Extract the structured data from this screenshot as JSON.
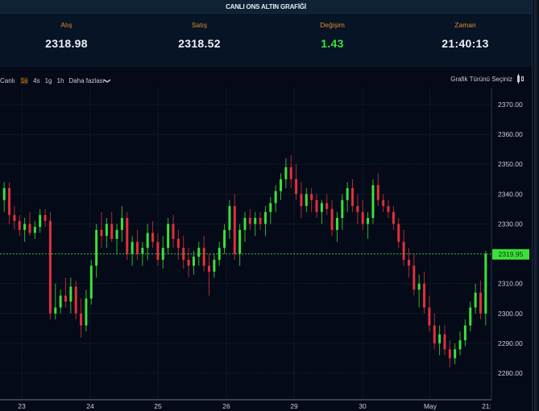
{
  "header": {
    "title": "CANLI ONS ALTIN GRAFİĞİ"
  },
  "stats": [
    {
      "label": "Alış",
      "value": "2318.98"
    },
    {
      "label": "Satış",
      "value": "2318.52"
    },
    {
      "label": "Değişim",
      "value": "1.43"
    },
    {
      "label": "Zaman",
      "value": "21:40:13"
    }
  ],
  "toolbar": {
    "live_label": "Canlı",
    "intervals": [
      "1s",
      "4s",
      "1g",
      "1h"
    ],
    "active_interval": "1s",
    "more_label": "Daha fazlası",
    "chart_type_label": "Grafik Türünü Seçiniz"
  },
  "colors": {
    "up": "#3ce03c",
    "down": "#e0303c",
    "accent": "#e08a2a",
    "background": "#040a18",
    "grid": "#1a2436",
    "last_price_bg": "#3ce03c"
  },
  "chart_data": {
    "type": "candlestick",
    "title": "CANLI ONS ALTIN GRAFİĞİ",
    "xlabel": "",
    "ylabel": "",
    "ylim": [
      2276,
      2373
    ],
    "y_ticks": [
      "2370.00",
      "2360.00",
      "2350.00",
      "2340.00",
      "2330.00",
      "2320.00",
      "2310.00",
      "2300.00",
      "2290.00",
      "2280.00"
    ],
    "x_ticks": [
      "23",
      "24",
      "25",
      "26",
      "29",
      "30",
      "May",
      "21:"
    ],
    "last_price": "2319.95",
    "grid": true,
    "candles": [
      [
        2338,
        2344,
        2334,
        2342
      ],
      [
        2342,
        2344,
        2330,
        2333
      ],
      [
        2333,
        2336,
        2328,
        2331
      ],
      [
        2331,
        2333,
        2326,
        2328
      ],
      [
        2328,
        2332,
        2324,
        2330
      ],
      [
        2330,
        2334,
        2326,
        2327
      ],
      [
        2327,
        2331,
        2325,
        2329
      ],
      [
        2329,
        2335,
        2327,
        2333
      ],
      [
        2333,
        2335,
        2329,
        2331
      ],
      [
        2331,
        2334,
        2298,
        2300
      ],
      [
        2300,
        2310,
        2298,
        2302
      ],
      [
        2302,
        2308,
        2300,
        2306
      ],
      [
        2306,
        2312,
        2302,
        2304
      ],
      [
        2304,
        2312,
        2300,
        2309
      ],
      [
        2309,
        2311,
        2298,
        2300
      ],
      [
        2300,
        2305,
        2292,
        2296
      ],
      [
        2296,
        2308,
        2294,
        2305
      ],
      [
        2305,
        2318,
        2303,
        2316
      ],
      [
        2316,
        2330,
        2312,
        2328
      ],
      [
        2328,
        2334,
        2322,
        2326
      ],
      [
        2326,
        2332,
        2322,
        2330
      ],
      [
        2330,
        2334,
        2324,
        2325
      ],
      [
        2325,
        2330,
        2320,
        2328
      ],
      [
        2328,
        2336,
        2324,
        2332
      ],
      [
        2332,
        2334,
        2318,
        2320
      ],
      [
        2320,
        2326,
        2316,
        2324
      ],
      [
        2324,
        2328,
        2318,
        2320
      ],
      [
        2320,
        2324,
        2316,
        2322
      ],
      [
        2322,
        2330,
        2318,
        2327
      ],
      [
        2327,
        2331,
        2322,
        2324
      ],
      [
        2324,
        2327,
        2316,
        2318
      ],
      [
        2318,
        2326,
        2315,
        2322
      ],
      [
        2322,
        2332,
        2320,
        2330
      ],
      [
        2330,
        2333,
        2322,
        2325
      ],
      [
        2325,
        2328,
        2318,
        2322
      ],
      [
        2322,
        2326,
        2315,
        2318
      ],
      [
        2318,
        2322,
        2312,
        2316
      ],
      [
        2316,
        2321,
        2313,
        2319
      ],
      [
        2319,
        2324,
        2316,
        2322
      ],
      [
        2322,
        2326,
        2314,
        2316
      ],
      [
        2316,
        2320,
        2306,
        2314
      ],
      [
        2314,
        2320,
        2312,
        2318
      ],
      [
        2318,
        2324,
        2316,
        2322
      ],
      [
        2322,
        2330,
        2320,
        2328
      ],
      [
        2328,
        2338,
        2325,
        2336
      ],
      [
        2336,
        2340,
        2318,
        2320
      ],
      [
        2320,
        2330,
        2316,
        2328
      ],
      [
        2328,
        2334,
        2324,
        2332
      ],
      [
        2332,
        2335,
        2328,
        2330
      ],
      [
        2330,
        2334,
        2326,
        2332
      ],
      [
        2332,
        2334,
        2328,
        2330
      ],
      [
        2330,
        2336,
        2326,
        2334
      ],
      [
        2334,
        2339,
        2330,
        2337
      ],
      [
        2337,
        2343,
        2334,
        2341
      ],
      [
        2341,
        2347,
        2338,
        2345
      ],
      [
        2345,
        2352,
        2342,
        2349
      ],
      [
        2349,
        2353,
        2342,
        2345
      ],
      [
        2345,
        2350,
        2338,
        2340
      ],
      [
        2340,
        2344,
        2332,
        2336
      ],
      [
        2336,
        2342,
        2334,
        2340
      ],
      [
        2340,
        2342,
        2334,
        2338
      ],
      [
        2338,
        2340,
        2332,
        2334
      ],
      [
        2334,
        2338,
        2330,
        2337
      ],
      [
        2337,
        2340,
        2333,
        2335
      ],
      [
        2335,
        2338,
        2326,
        2328
      ],
      [
        2328,
        2334,
        2324,
        2332
      ],
      [
        2332,
        2340,
        2328,
        2338
      ],
      [
        2338,
        2344,
        2334,
        2342
      ],
      [
        2342,
        2345,
        2334,
        2336
      ],
      [
        2336,
        2340,
        2330,
        2334
      ],
      [
        2334,
        2338,
        2328,
        2330
      ],
      [
        2330,
        2334,
        2325,
        2332
      ],
      [
        2332,
        2345,
        2330,
        2343
      ],
      [
        2343,
        2347,
        2336,
        2338
      ],
      [
        2338,
        2340,
        2334,
        2336
      ],
      [
        2336,
        2338,
        2332,
        2334
      ],
      [
        2334,
        2336,
        2328,
        2330
      ],
      [
        2330,
        2332,
        2322,
        2324
      ],
      [
        2324,
        2328,
        2316,
        2318
      ],
      [
        2318,
        2322,
        2312,
        2316
      ],
      [
        2316,
        2320,
        2306,
        2308
      ],
      [
        2308,
        2313,
        2302,
        2310
      ],
      [
        2310,
        2314,
        2300,
        2302
      ],
      [
        2302,
        2306,
        2294,
        2296
      ],
      [
        2296,
        2300,
        2288,
        2290
      ],
      [
        2290,
        2296,
        2286,
        2293
      ],
      [
        2293,
        2296,
        2286,
        2288
      ],
      [
        2288,
        2291,
        2282,
        2285
      ],
      [
        2285,
        2290,
        2283,
        2288
      ],
      [
        2288,
        2294,
        2286,
        2291
      ],
      [
        2291,
        2298,
        2289,
        2296
      ],
      [
        2296,
        2304,
        2294,
        2302
      ],
      [
        2302,
        2310,
        2300,
        2307
      ],
      [
        2307,
        2311,
        2298,
        2300
      ],
      [
        2300,
        2321,
        2296,
        2320
      ]
    ]
  }
}
